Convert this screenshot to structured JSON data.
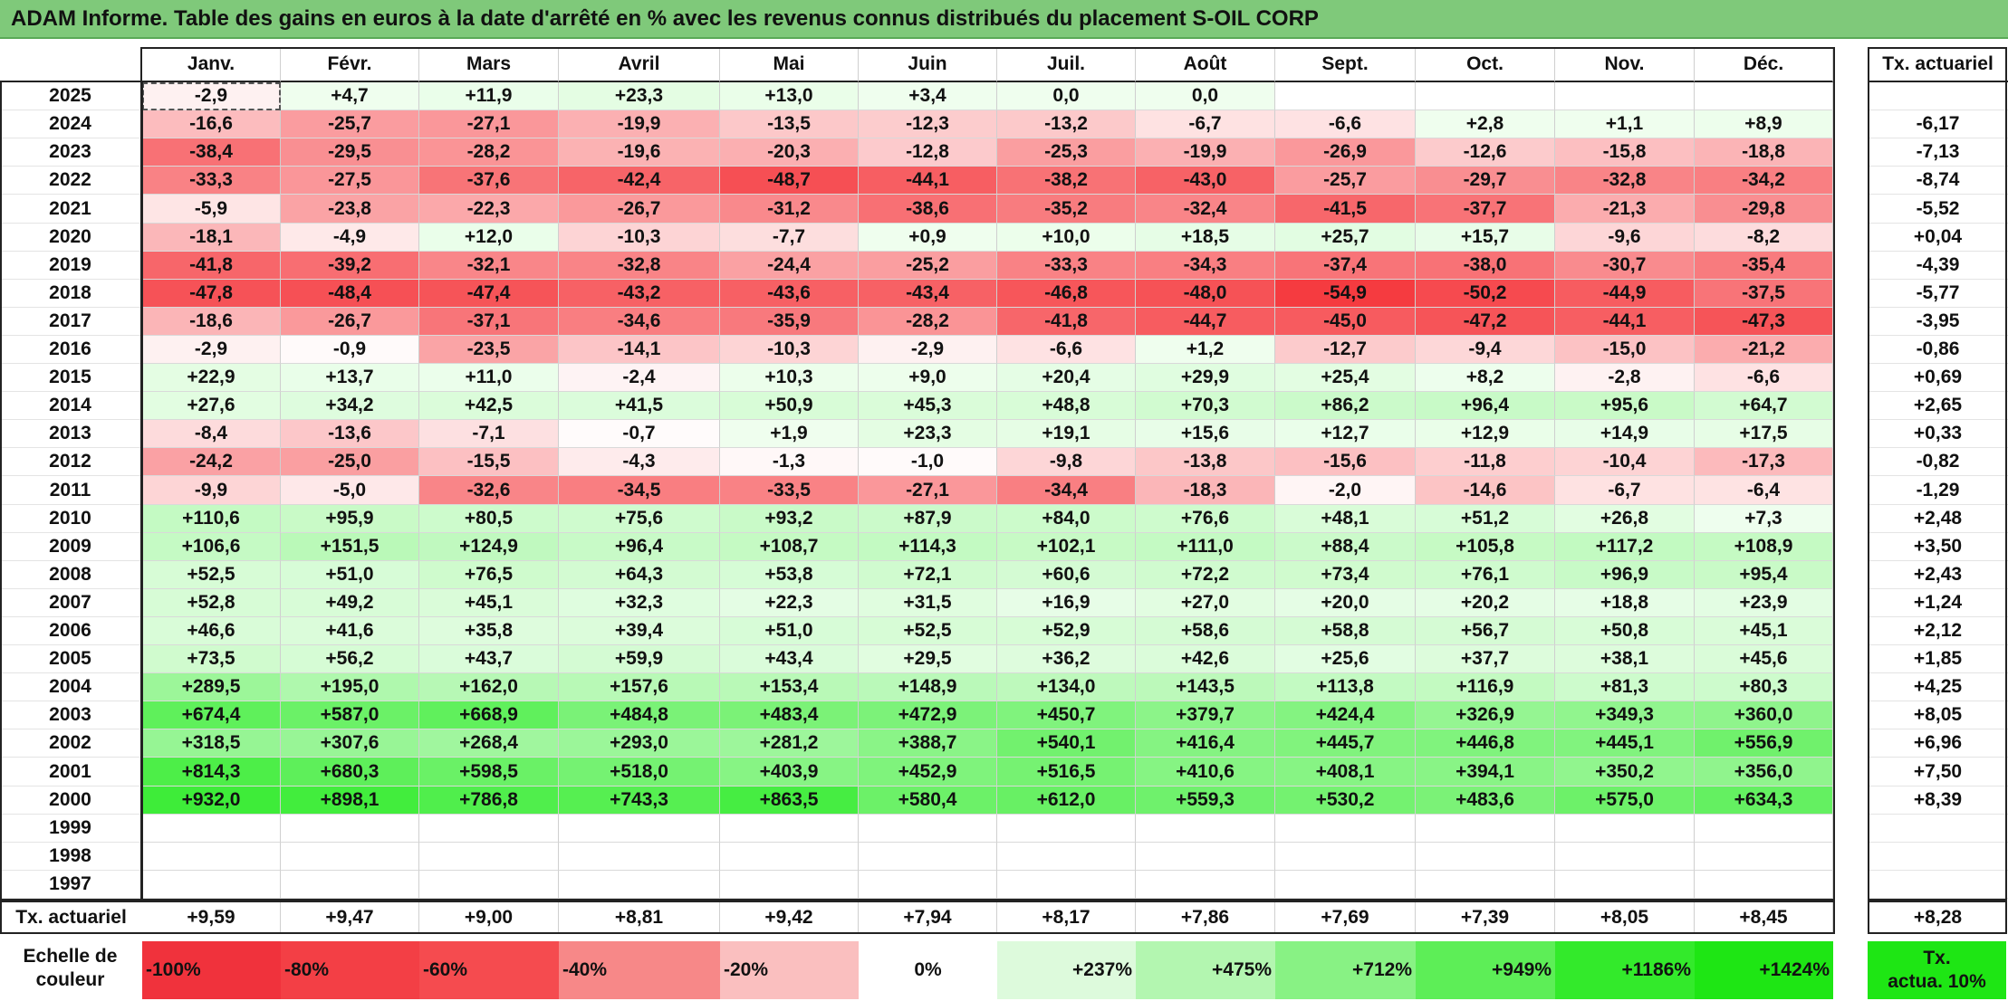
{
  "title": "ADAM Informe. Table des gains en euros à la date d'arrêté en % avec les revenus connus distribués du placement S-OIL CORP",
  "months": [
    "Janv.",
    "Févr.",
    "Mars",
    "Avril",
    "Mai",
    "Juin",
    "Juil.",
    "Août",
    "Sept.",
    "Oct.",
    "Nov.",
    "Déc."
  ],
  "tx_header": "Tx. actuariel",
  "rows": [
    {
      "year": "2025",
      "values": [
        "-2,9",
        "+4,7",
        "+11,9",
        "+23,3",
        "+13,0",
        "+3,4",
        "0,0",
        "0,0",
        "",
        "",
        "",
        ""
      ],
      "tx": ""
    },
    {
      "year": "2024",
      "values": [
        "-16,6",
        "-25,7",
        "-27,1",
        "-19,9",
        "-13,5",
        "-12,3",
        "-13,2",
        "-6,7",
        "-6,6",
        "+2,8",
        "+1,1",
        "+8,9"
      ],
      "tx": "-6,17"
    },
    {
      "year": "2023",
      "values": [
        "-38,4",
        "-29,5",
        "-28,2",
        "-19,6",
        "-20,3",
        "-12,8",
        "-25,3",
        "-19,9",
        "-26,9",
        "-12,6",
        "-15,8",
        "-18,8"
      ],
      "tx": "-7,13"
    },
    {
      "year": "2022",
      "values": [
        "-33,3",
        "-27,5",
        "-37,6",
        "-42,4",
        "-48,7",
        "-44,1",
        "-38,2",
        "-43,0",
        "-25,7",
        "-29,7",
        "-32,8",
        "-34,2"
      ],
      "tx": "-8,74"
    },
    {
      "year": "2021",
      "values": [
        "-5,9",
        "-23,8",
        "-22,3",
        "-26,7",
        "-31,2",
        "-38,6",
        "-35,2",
        "-32,4",
        "-41,5",
        "-37,7",
        "-21,3",
        "-29,8"
      ],
      "tx": "-5,52"
    },
    {
      "year": "2020",
      "values": [
        "-18,1",
        "-4,9",
        "+12,0",
        "-10,3",
        "-7,7",
        "+0,9",
        "+10,0",
        "+18,5",
        "+25,7",
        "+15,7",
        "-9,6",
        "-8,2"
      ],
      "tx": "+0,04"
    },
    {
      "year": "2019",
      "values": [
        "-41,8",
        "-39,2",
        "-32,1",
        "-32,8",
        "-24,4",
        "-25,2",
        "-33,3",
        "-34,3",
        "-37,4",
        "-38,0",
        "-30,7",
        "-35,4"
      ],
      "tx": "-4,39"
    },
    {
      "year": "2018",
      "values": [
        "-47,8",
        "-48,4",
        "-47,4",
        "-43,2",
        "-43,6",
        "-43,4",
        "-46,8",
        "-48,0",
        "-54,9",
        "-50,2",
        "-44,9",
        "-37,5"
      ],
      "tx": "-5,77"
    },
    {
      "year": "2017",
      "values": [
        "-18,6",
        "-26,7",
        "-37,1",
        "-34,6",
        "-35,9",
        "-28,2",
        "-41,8",
        "-44,7",
        "-45,0",
        "-47,2",
        "-44,1",
        "-47,3"
      ],
      "tx": "-3,95"
    },
    {
      "year": "2016",
      "values": [
        "-2,9",
        "-0,9",
        "-23,5",
        "-14,1",
        "-10,3",
        "-2,9",
        "-6,6",
        "+1,2",
        "-12,7",
        "-9,4",
        "-15,0",
        "-21,2"
      ],
      "tx": "-0,86"
    },
    {
      "year": "2015",
      "values": [
        "+22,9",
        "+13,7",
        "+11,0",
        "-2,4",
        "+10,3",
        "+9,0",
        "+20,4",
        "+29,9",
        "+25,4",
        "+8,2",
        "-2,8",
        "-6,6"
      ],
      "tx": "+0,69"
    },
    {
      "year": "2014",
      "values": [
        "+27,6",
        "+34,2",
        "+42,5",
        "+41,5",
        "+50,9",
        "+45,3",
        "+48,8",
        "+70,3",
        "+86,2",
        "+96,4",
        "+95,6",
        "+64,7"
      ],
      "tx": "+2,65"
    },
    {
      "year": "2013",
      "values": [
        "-8,4",
        "-13,6",
        "-7,1",
        "-0,7",
        "+1,9",
        "+23,3",
        "+19,1",
        "+15,6",
        "+12,7",
        "+12,9",
        "+14,9",
        "+17,5"
      ],
      "tx": "+0,33"
    },
    {
      "year": "2012",
      "values": [
        "-24,2",
        "-25,0",
        "-15,5",
        "-4,3",
        "-1,3",
        "-1,0",
        "-9,8",
        "-13,8",
        "-15,6",
        "-11,8",
        "-10,4",
        "-17,3"
      ],
      "tx": "-0,82"
    },
    {
      "year": "2011",
      "values": [
        "-9,9",
        "-5,0",
        "-32,6",
        "-34,5",
        "-33,5",
        "-27,1",
        "-34,4",
        "-18,3",
        "-2,0",
        "-14,6",
        "-6,7",
        "-6,4"
      ],
      "tx": "-1,29"
    },
    {
      "year": "2010",
      "values": [
        "+110,6",
        "+95,9",
        "+80,5",
        "+75,6",
        "+93,2",
        "+87,9",
        "+84,0",
        "+76,6",
        "+48,1",
        "+51,2",
        "+26,8",
        "+7,3"
      ],
      "tx": "+2,48"
    },
    {
      "year": "2009",
      "values": [
        "+106,6",
        "+151,5",
        "+124,9",
        "+96,4",
        "+108,7",
        "+114,3",
        "+102,1",
        "+111,0",
        "+88,4",
        "+105,8",
        "+117,2",
        "+108,9"
      ],
      "tx": "+3,50"
    },
    {
      "year": "2008",
      "values": [
        "+52,5",
        "+51,0",
        "+76,5",
        "+64,3",
        "+53,8",
        "+72,1",
        "+60,6",
        "+72,2",
        "+73,4",
        "+76,1",
        "+96,9",
        "+95,4"
      ],
      "tx": "+2,43"
    },
    {
      "year": "2007",
      "values": [
        "+52,8",
        "+49,2",
        "+45,1",
        "+32,3",
        "+22,3",
        "+31,5",
        "+16,9",
        "+27,0",
        "+20,0",
        "+20,2",
        "+18,8",
        "+23,9"
      ],
      "tx": "+1,24"
    },
    {
      "year": "2006",
      "values": [
        "+46,6",
        "+41,6",
        "+35,8",
        "+39,4",
        "+51,0",
        "+52,5",
        "+52,9",
        "+58,6",
        "+58,8",
        "+56,7",
        "+50,8",
        "+45,1"
      ],
      "tx": "+2,12"
    },
    {
      "year": "2005",
      "values": [
        "+73,5",
        "+56,2",
        "+43,7",
        "+59,9",
        "+43,4",
        "+29,5",
        "+36,2",
        "+42,6",
        "+25,6",
        "+37,7",
        "+38,1",
        "+45,6"
      ],
      "tx": "+1,85"
    },
    {
      "year": "2004",
      "values": [
        "+289,5",
        "+195,0",
        "+162,0",
        "+157,6",
        "+153,4",
        "+148,9",
        "+134,0",
        "+143,5",
        "+113,8",
        "+116,9",
        "+81,3",
        "+80,3"
      ],
      "tx": "+4,25"
    },
    {
      "year": "2003",
      "values": [
        "+674,4",
        "+587,0",
        "+668,9",
        "+484,8",
        "+483,4",
        "+472,9",
        "+450,7",
        "+379,7",
        "+424,4",
        "+326,9",
        "+349,3",
        "+360,0"
      ],
      "tx": "+8,05"
    },
    {
      "year": "2002",
      "values": [
        "+318,5",
        "+307,6",
        "+268,4",
        "+293,0",
        "+281,2",
        "+388,7",
        "+540,1",
        "+416,4",
        "+445,7",
        "+446,8",
        "+445,1",
        "+556,9"
      ],
      "tx": "+6,96"
    },
    {
      "year": "2001",
      "values": [
        "+814,3",
        "+680,3",
        "+598,5",
        "+518,0",
        "+403,9",
        "+452,9",
        "+516,5",
        "+410,6",
        "+408,1",
        "+394,1",
        "+350,2",
        "+356,0"
      ],
      "tx": "+7,50"
    },
    {
      "year": "2000",
      "values": [
        "+932,0",
        "+898,1",
        "+786,8",
        "+743,3",
        "+863,5",
        "+580,4",
        "+612,0",
        "+559,3",
        "+530,2",
        "+483,6",
        "+575,0",
        "+634,3"
      ],
      "tx": "+8,39"
    },
    {
      "year": "1999",
      "values": [
        "",
        "",
        "",
        "",
        "",
        "",
        "",
        "",
        "",
        "",
        "",
        ""
      ],
      "tx": ""
    },
    {
      "year": "1998",
      "values": [
        "",
        "",
        "",
        "",
        "",
        "",
        "",
        "",
        "",
        "",
        "",
        ""
      ],
      "tx": ""
    },
    {
      "year": "1997",
      "values": [
        "",
        "",
        "",
        "",
        "",
        "",
        "",
        "",
        "",
        "",
        "",
        ""
      ],
      "tx": ""
    }
  ],
  "footer": {
    "label": "Tx. actuariel",
    "values": [
      "+9,59",
      "+9,47",
      "+9,00",
      "+8,81",
      "+9,42",
      "+7,94",
      "+8,17",
      "+7,86",
      "+7,69",
      "+7,39",
      "+8,05",
      "+8,45"
    ],
    "tx": "+8,28"
  },
  "legend": {
    "label_line1": "Echelle de",
    "label_line2": "couleur",
    "items": [
      "-100%",
      "-80%",
      "-60%",
      "-40%",
      "-20%",
      "0%",
      "+237%",
      "+475%",
      "+712%",
      "+949%",
      "+1186%",
      "+1424%"
    ],
    "colors": [
      "#f0323c",
      "#f33f45",
      "#f54b4f",
      "#f78888",
      "#fabfbf",
      "#ffffff",
      "#ddfadc",
      "#b3f6b0",
      "#88f284",
      "#5dee57",
      "#33ea2b",
      "#1ee614"
    ],
    "tx_line1": "Tx.",
    "tx_line2": "actua. 10%",
    "tx_color": "#1ee614"
  }
}
